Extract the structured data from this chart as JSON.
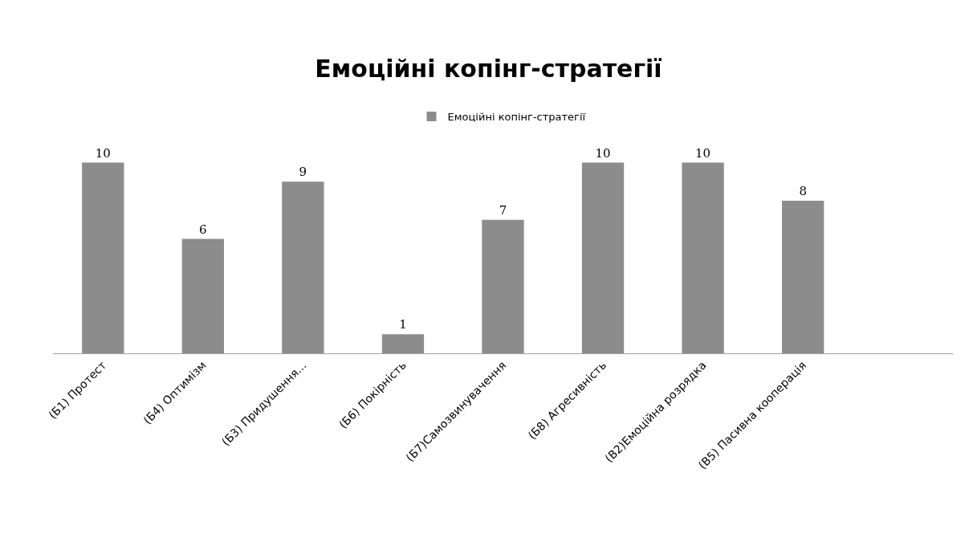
{
  "chart_data": {
    "type": "bar",
    "title": "Емоційні копінг-стратегії",
    "categories": [
      "(Б1) Протест",
      "(Б4) Оптимізм",
      "(Б3) Придушення...",
      "(Б6) Покірність",
      "(Б7)Самозвинувачення",
      "(Б8) Агресивність",
      "(В2)Емоційна розрядка",
      "(В5) Пасивна кооперація",
      null
    ],
    "series": [
      {
        "name": "Емоційні копінг-стратегії",
        "color": "#8c8c8c",
        "values": [
          10,
          6,
          9,
          1,
          7,
          10,
          10,
          8,
          null
        ]
      }
    ],
    "data_labels": true,
    "legend": "top"
  }
}
